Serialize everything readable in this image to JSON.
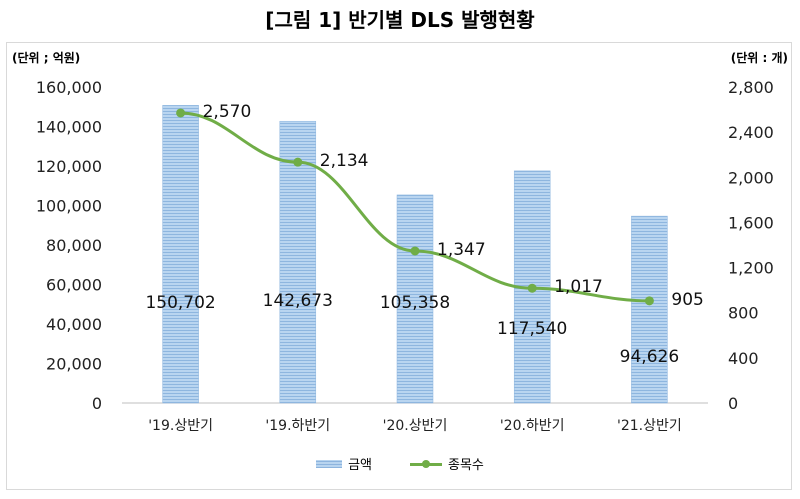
{
  "title": "[그림 1] 반기별 DLS 발행현황",
  "unit_left": "(단위 ; 억원)",
  "unit_right": "(단위 : 개)",
  "legend": {
    "amount": "금액",
    "count": "종목수"
  },
  "colors": {
    "bar": "#9dc3e6",
    "line": "#70ad47"
  },
  "chart_data": {
    "type": "bar",
    "categories": [
      "'19.상반기",
      "'19.하반기",
      "'20.상반기",
      "'20.하반기",
      "'21.상반기"
    ],
    "series": [
      {
        "name": "금액",
        "type": "bar",
        "axis": "left",
        "values": [
          150702,
          142673,
          105358,
          117540,
          94626
        ],
        "labels": [
          "150,702",
          "142,673",
          "105,358",
          "117,540",
          "94,626"
        ]
      },
      {
        "name": "종목수",
        "type": "line",
        "axis": "right",
        "values": [
          2570,
          2134,
          1347,
          1017,
          905
        ],
        "labels": [
          "2,570",
          "2,134",
          "1,347",
          "1,017",
          "905"
        ]
      }
    ],
    "y_left": {
      "ylim": [
        0,
        160000
      ],
      "ticks": [
        "0",
        "20,000",
        "40,000",
        "60,000",
        "80,000",
        "100,000",
        "120,000",
        "140,000",
        "160,000"
      ]
    },
    "y_right": {
      "ylim": [
        0,
        2800
      ],
      "ticks": [
        "0",
        "400",
        "800",
        "1,200",
        "1,600",
        "2,000",
        "2,400",
        "2,800"
      ]
    },
    "grid": false,
    "legend_position": "bottom"
  }
}
